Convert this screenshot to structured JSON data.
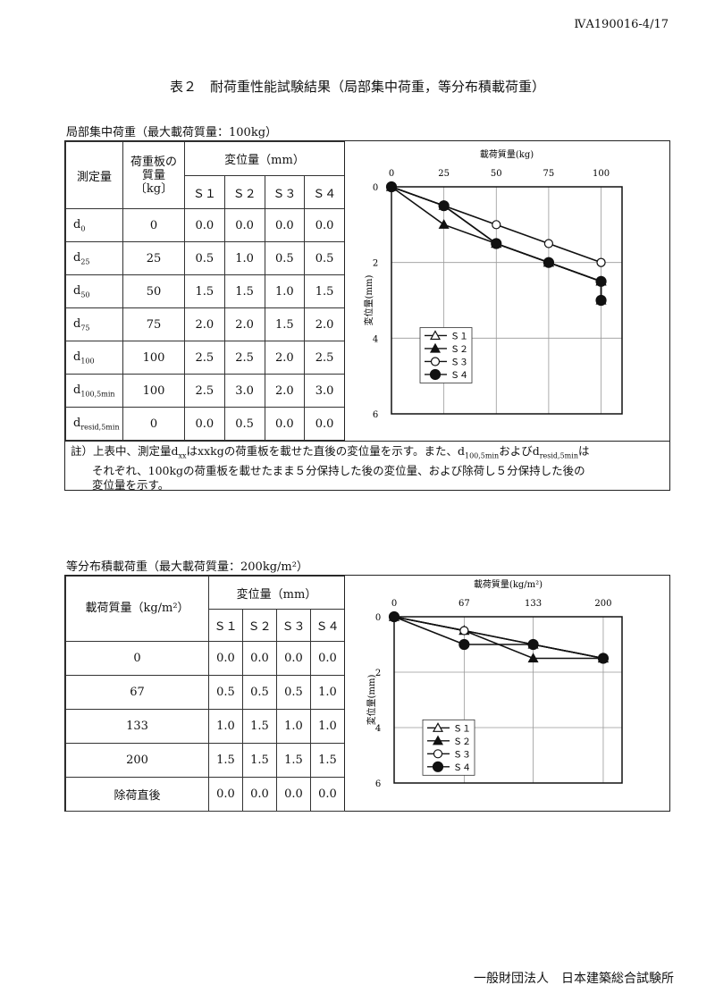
{
  "doc_id": "ⅣA190016-4/17",
  "title": "表２　耐荷重性能試験結果（局部集中荷重，等分布積載荷重）",
  "section1": {
    "label": "局部集中荷重（最大載荷質量：100kg）",
    "headers": {
      "measure": "測定量",
      "mass": "荷重板の質量〔kg〕",
      "disp": "変位量（mm）",
      "samples": [
        "Ｓ１",
        "Ｓ２",
        "Ｓ３",
        "Ｓ４"
      ]
    },
    "rows": [
      {
        "d": "d",
        "sub": "0",
        "mass": "0",
        "v": [
          "0.0",
          "0.0",
          "0.0",
          "0.0"
        ]
      },
      {
        "d": "d",
        "sub": "25",
        "mass": "25",
        "v": [
          "0.5",
          "1.0",
          "0.5",
          "0.5"
        ]
      },
      {
        "d": "d",
        "sub": "50",
        "mass": "50",
        "v": [
          "1.5",
          "1.5",
          "1.0",
          "1.5"
        ]
      },
      {
        "d": "d",
        "sub": "75",
        "mass": "75",
        "v": [
          "2.0",
          "2.0",
          "1.5",
          "2.0"
        ]
      },
      {
        "d": "d",
        "sub": "100",
        "mass": "100",
        "v": [
          "2.5",
          "2.5",
          "2.0",
          "2.5"
        ]
      },
      {
        "d": "d",
        "sub": "100,5min",
        "mass": "100",
        "v": [
          "2.5",
          "3.0",
          "2.0",
          "3.0"
        ]
      },
      {
        "d": "d",
        "sub": "resid,5min",
        "mass": "0",
        "v": [
          "0.0",
          "0.5",
          "0.0",
          "0.0"
        ],
        "dashed": true
      }
    ],
    "note": {
      "p1": "註）上表中、測定量d",
      "s1": "xx",
      "p2": "はxxkgの荷重板を載せた直後の変位量を示す。また、d",
      "s2": "100,5min",
      "p3": "およびd",
      "s3": "resid,5min",
      "p4": "は",
      "line2": "それぞれ、100kgの荷重板を載せたまま５分保持した後の変位量、および除荷し５分保持した後の",
      "line3": "変位量を示す。"
    }
  },
  "section2": {
    "label": "等分布積載荷重（最大載荷質量：200kg/m²）",
    "headers": {
      "mass": "載荷質量（kg/m²）",
      "disp": "変位量（mm）",
      "samples": [
        "Ｓ１",
        "Ｓ２",
        "Ｓ３",
        "Ｓ４"
      ]
    },
    "rows": [
      {
        "mass": "0",
        "v": [
          "0.0",
          "0.0",
          "0.0",
          "0.0"
        ]
      },
      {
        "mass": "67",
        "v": [
          "0.5",
          "0.5",
          "0.5",
          "1.0"
        ]
      },
      {
        "mass": "133",
        "v": [
          "1.0",
          "1.5",
          "1.0",
          "1.0"
        ]
      },
      {
        "mass": "200",
        "v": [
          "1.5",
          "1.5",
          "1.5",
          "1.5"
        ]
      },
      {
        "mass": "除荷直後",
        "v": [
          "0.0",
          "0.0",
          "0.0",
          "0.0"
        ],
        "dashed": true
      }
    ]
  },
  "chart_data": [
    {
      "type": "line",
      "xlabel": "載荷質量(kg)",
      "ylabel": "変位量(mm)",
      "x": [
        0,
        25,
        50,
        75,
        100,
        100
      ],
      "xticks": [
        0,
        25,
        50,
        75,
        100
      ],
      "yticks": [
        0,
        2,
        4,
        6
      ],
      "xlim": [
        0,
        110
      ],
      "ylim": [
        0,
        6
      ],
      "y_inverted": true,
      "x_axis": "top",
      "grid": true,
      "legend": "bottom-left",
      "series": [
        {
          "name": "Ｓ１",
          "marker": "open-triangle",
          "values": [
            0,
            0.5,
            1.5,
            2.0,
            2.5,
            2.5
          ]
        },
        {
          "name": "Ｓ２",
          "marker": "filled-triangle",
          "values": [
            0,
            1.0,
            1.5,
            2.0,
            2.5,
            3.0
          ]
        },
        {
          "name": "Ｓ３",
          "marker": "open-circle",
          "values": [
            0,
            0.5,
            1.0,
            1.5,
            2.0,
            2.0
          ]
        },
        {
          "name": "Ｓ４",
          "marker": "filled-circle",
          "values": [
            0,
            0.5,
            1.5,
            2.0,
            2.5,
            3.0
          ]
        }
      ]
    },
    {
      "type": "line",
      "xlabel": "載荷質量(kg/m²)",
      "ylabel": "変位量(mm)",
      "x": [
        0,
        67,
        133,
        200
      ],
      "xticks": [
        0,
        67,
        133,
        200
      ],
      "yticks": [
        0,
        2,
        4,
        6
      ],
      "xlim": [
        0,
        218
      ],
      "ylim": [
        0,
        6
      ],
      "y_inverted": true,
      "x_axis": "top",
      "grid": true,
      "legend": "bottom-left",
      "series": [
        {
          "name": "Ｓ１",
          "marker": "open-triangle",
          "values": [
            0,
            0.5,
            1.0,
            1.5
          ]
        },
        {
          "name": "Ｓ２",
          "marker": "filled-triangle",
          "values": [
            0,
            0.5,
            1.5,
            1.5
          ]
        },
        {
          "name": "Ｓ３",
          "marker": "open-circle",
          "values": [
            0,
            0.5,
            1.0,
            1.5
          ]
        },
        {
          "name": "Ｓ４",
          "marker": "filled-circle",
          "values": [
            0,
            1.0,
            1.0,
            1.5
          ]
        }
      ]
    }
  ],
  "footer": "一般財団法人　日本建築総合試験所"
}
